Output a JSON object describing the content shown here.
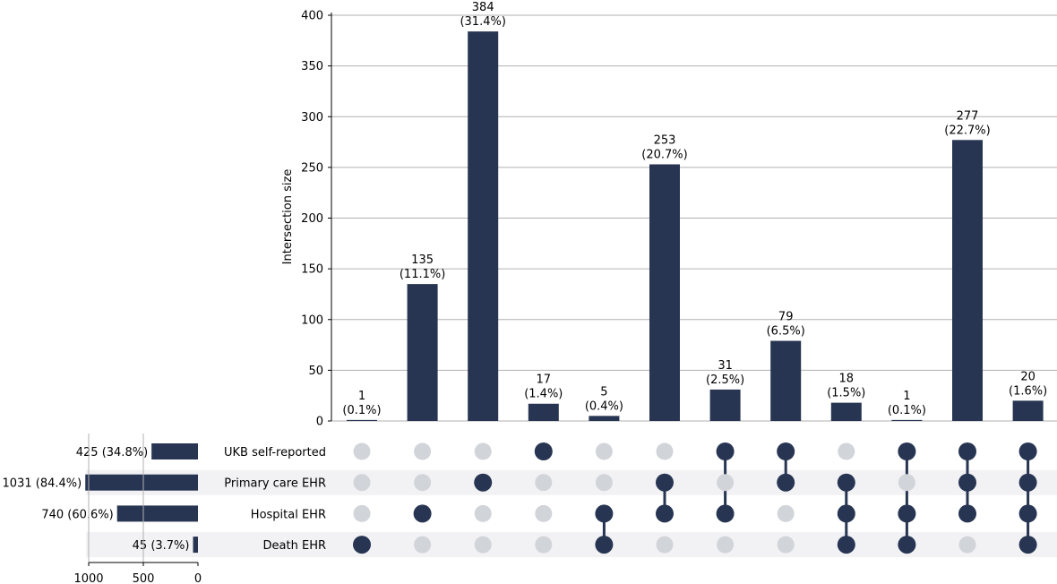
{
  "chart_data": {
    "type": "upset",
    "sets": [
      {
        "name": "UKB self-reported",
        "size": 425,
        "label": "425 (34.8%)"
      },
      {
        "name": "Primary care EHR",
        "size": 1031,
        "label": "1031 (84.4%)"
      },
      {
        "name": "Hospital EHR",
        "size": 740,
        "label": "740 (60.6%)"
      },
      {
        "name": "Death EHR",
        "size": 45,
        "label": "45 (3.7%)"
      }
    ],
    "intersections": [
      {
        "members": [
          3
        ],
        "value": 1,
        "label": "1",
        "pct": "(0.1%)"
      },
      {
        "members": [
          2
        ],
        "value": 135,
        "label": "135",
        "pct": "(11.1%)"
      },
      {
        "members": [
          1
        ],
        "value": 384,
        "label": "384",
        "pct": "(31.4%)"
      },
      {
        "members": [
          0
        ],
        "value": 17,
        "label": "17",
        "pct": "(1.4%)"
      },
      {
        "members": [
          2,
          3
        ],
        "value": 5,
        "label": "5",
        "pct": "(0.4%)"
      },
      {
        "members": [
          1,
          2
        ],
        "value": 253,
        "label": "253",
        "pct": "(20.7%)"
      },
      {
        "members": [
          0,
          2
        ],
        "value": 31,
        "label": "31",
        "pct": "(2.5%)"
      },
      {
        "members": [
          0,
          1
        ],
        "value": 79,
        "label": "79",
        "pct": "(6.5%)"
      },
      {
        "members": [
          1,
          2,
          3
        ],
        "value": 18,
        "label": "18",
        "pct": "(1.5%)"
      },
      {
        "members": [
          0,
          2,
          3
        ],
        "value": 1,
        "label": "1",
        "pct": "(0.1%)"
      },
      {
        "members": [
          0,
          1,
          2
        ],
        "value": 277,
        "label": "277",
        "pct": "(22.7%)"
      },
      {
        "members": [
          0,
          1,
          2,
          3
        ],
        "value": 20,
        "label": "20",
        "pct": "(1.6%)"
      }
    ],
    "ylabel": "Intersection size",
    "ylim": [
      0,
      400
    ],
    "yticks": [
      "0",
      "50",
      "100",
      "150",
      "200",
      "250",
      "300",
      "350",
      "400"
    ],
    "set_size_ticks": [
      "1000",
      "500",
      "0"
    ],
    "set_size_lim": [
      0,
      1000
    ],
    "grid": true,
    "colors": {
      "bar": "#273552",
      "inactive_dot": "#d1d4d9",
      "stripe": "#f2f2f5",
      "grid": "#b0b0b0"
    }
  }
}
